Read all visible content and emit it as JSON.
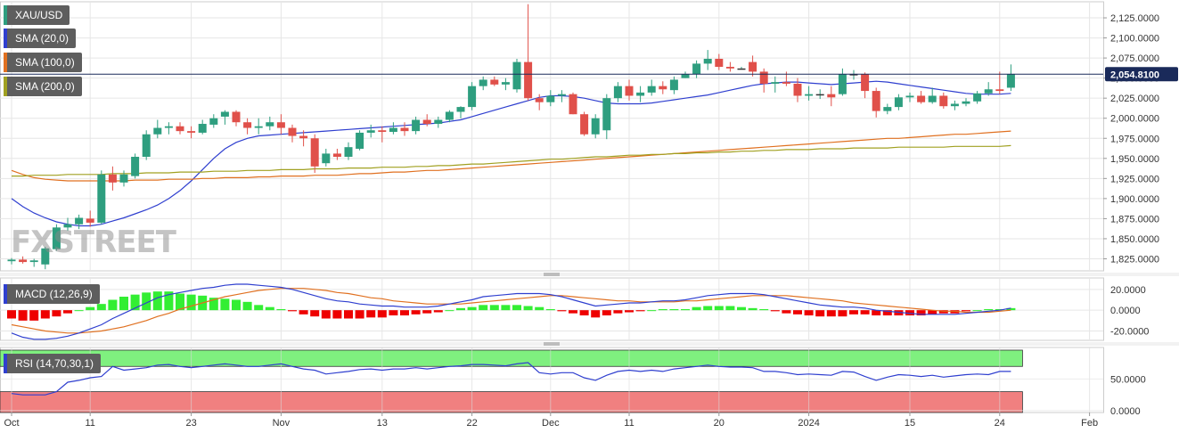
{
  "chart_data": [
    {
      "type": "candlestick",
      "title": "XAU/USD",
      "ylim": [
        1810,
        2145
      ],
      "yticks": [
        "2,125.0000",
        "2,100.0000",
        "2,075.0000",
        "2,050.0000",
        "2,025.0000",
        "2,000.0000",
        "1,975.0000",
        "1,950.0000",
        "1,925.0000",
        "1,900.0000",
        "1,875.0000",
        "1,850.0000",
        "1,825.0000"
      ],
      "last_price_label": "2,054.8100",
      "last_price": 2054.81,
      "candles": [
        [
          1822,
          1826,
          1818,
          1824
        ],
        [
          1824,
          1828,
          1819,
          1821
        ],
        [
          1821,
          1825,
          1815,
          1823
        ],
        [
          1818,
          1840,
          1812,
          1838
        ],
        [
          1837,
          1868,
          1835,
          1864
        ],
        [
          1864,
          1876,
          1860,
          1868
        ],
        [
          1868,
          1880,
          1862,
          1876
        ],
        [
          1875,
          1885,
          1865,
          1870
        ],
        [
          1870,
          1935,
          1868,
          1930
        ],
        [
          1930,
          1940,
          1910,
          1920
        ],
        [
          1920,
          1935,
          1915,
          1930
        ],
        [
          1928,
          1956,
          1925,
          1952
        ],
        [
          1952,
          1985,
          1948,
          1980
        ],
        [
          1980,
          1998,
          1975,
          1988
        ],
        [
          1988,
          1995,
          1980,
          1990
        ],
        [
          1990,
          1995,
          1980,
          1984
        ],
        [
          1984,
          1990,
          1975,
          1982
        ],
        [
          1982,
          1998,
          1980,
          1993
        ],
        [
          1992,
          2005,
          1988,
          2000
        ],
        [
          2002,
          2010,
          1992,
          2008
        ],
        [
          2008,
          2010,
          1990,
          1995
        ],
        [
          1995,
          2000,
          1980,
          1988
        ],
        [
          1988,
          2000,
          1980,
          1990
        ],
        [
          1990,
          2002,
          1985,
          1995
        ],
        [
          1995,
          2005,
          1980,
          1988
        ],
        [
          1988,
          1992,
          1970,
          1978
        ],
        [
          1978,
          1985,
          1965,
          1975
        ],
        [
          1975,
          1980,
          1932,
          1940
        ],
        [
          1944,
          1962,
          1940,
          1956
        ],
        [
          1956,
          1962,
          1948,
          1952
        ],
        [
          1952,
          1970,
          1948,
          1964
        ],
        [
          1962,
          1985,
          1960,
          1982
        ],
        [
          1982,
          1992,
          1976,
          1985
        ],
        [
          1985,
          1990,
          1970,
          1983
        ],
        [
          1983,
          1995,
          1980,
          1988
        ],
        [
          1988,
          1995,
          1978,
          1984
        ],
        [
          1984,
          2002,
          1980,
          1998
        ],
        [
          1998,
          2005,
          1990,
          1993
        ],
        [
          1993,
          2002,
          1988,
          1998
        ],
        [
          1998,
          2010,
          1995,
          2008
        ],
        [
          2008,
          2015,
          2000,
          2014
        ],
        [
          2014,
          2045,
          2010,
          2040
        ],
        [
          2040,
          2052,
          2035,
          2048
        ],
        [
          2048,
          2052,
          2040,
          2042
        ],
        [
          2042,
          2050,
          2035,
          2045
        ],
        [
          2036,
          2074,
          2032,
          2070
        ],
        [
          2070,
          2142,
          2022,
          2025
        ],
        [
          2025,
          2030,
          2010,
          2020
        ],
        [
          2020,
          2035,
          2015,
          2028
        ],
        [
          2028,
          2035,
          2020,
          2030
        ],
        [
          2030,
          2032,
          2005,
          2005
        ],
        [
          2005,
          2008,
          1978,
          1980
        ],
        [
          1980,
          2005,
          1975,
          2000
        ],
        [
          1985,
          2030,
          1974,
          2025
        ],
        [
          2025,
          2045,
          2020,
          2040
        ],
        [
          2040,
          2048,
          2022,
          2028
        ],
        [
          2028,
          2040,
          2020,
          2032
        ],
        [
          2032,
          2048,
          2028,
          2040
        ],
        [
          2040,
          2046,
          2030,
          2036
        ],
        [
          2035,
          2052,
          2030,
          2048
        ],
        [
          2050,
          2058,
          2050,
          2055
        ],
        [
          2055,
          2072,
          2050,
          2068
        ],
        [
          2068,
          2085,
          2060,
          2074
        ],
        [
          2074,
          2080,
          2060,
          2064
        ],
        [
          2064,
          2070,
          2058,
          2062
        ],
        [
          2062,
          2064,
          2062,
          2062
        ],
        [
          2070,
          2078,
          2052,
          2058
        ],
        [
          2058,
          2062,
          2032,
          2043
        ],
        [
          2043,
          2052,
          2032,
          2045
        ],
        [
          2045,
          2058,
          2040,
          2043
        ],
        [
          2043,
          2050,
          2020,
          2028
        ],
        [
          2028,
          2040,
          2022,
          2030
        ],
        [
          2030,
          2036,
          2024,
          2030
        ],
        [
          2030,
          2040,
          2015,
          2026
        ],
        [
          2030,
          2062,
          2028,
          2055
        ],
        [
          2055,
          2060,
          2048,
          2055
        ],
        [
          2055,
          2057,
          2025,
          2034
        ],
        [
          2034,
          2038,
          2001,
          2009
        ],
        [
          2009,
          2018,
          2005,
          2014
        ],
        [
          2014,
          2030,
          2010,
          2026
        ],
        [
          2026,
          2032,
          2020,
          2028
        ],
        [
          2028,
          2034,
          2018,
          2020
        ],
        [
          2020,
          2038,
          2018,
          2028
        ],
        [
          2028,
          2032,
          2012,
          2015
        ],
        [
          2015,
          2022,
          2010,
          2018
        ],
        [
          2018,
          2025,
          2015,
          2021
        ],
        [
          2021,
          2034,
          2018,
          2031
        ],
        [
          2031,
          2045,
          2028,
          2036
        ],
        [
          2036,
          2058,
          2030,
          2034
        ],
        [
          2038,
          2067,
          2034,
          2054.81
        ]
      ],
      "sma": [
        {
          "name": "SMA (20,0)",
          "color": "#2f3fcf",
          "values": [
            1900,
            1890,
            1882,
            1876,
            1871,
            1868,
            1866,
            1866,
            1868,
            1872,
            1876,
            1881,
            1886,
            1892,
            1900,
            1910,
            1922,
            1936,
            1950,
            1962,
            1970,
            1975,
            1978,
            1979,
            1980,
            1981,
            1982,
            1983,
            1984,
            1985,
            1986,
            1987,
            1988,
            1989,
            1990,
            1991,
            1992,
            1993,
            1994,
            1996,
            1998,
            2002,
            2006,
            2010,
            2014,
            2018,
            2022,
            2026,
            2028,
            2028,
            2027,
            2025,
            2022,
            2019,
            2018,
            2018,
            2018,
            2019,
            2021,
            2023,
            2025,
            2027,
            2029,
            2032,
            2035,
            2038,
            2041,
            2043,
            2044,
            2045,
            2045,
            2044,
            2043,
            2042,
            2043,
            2044,
            2045,
            2046,
            2045,
            2043,
            2041,
            2039,
            2037,
            2035,
            2033,
            2031,
            2030,
            2030,
            2030,
            2031
          ]
        },
        {
          "name": "SMA (100,0)",
          "color": "#e07020",
          "values": [
            1935,
            1930,
            1926,
            1924,
            1923,
            1922,
            1922,
            1922,
            1922,
            1922,
            1922,
            1923,
            1923,
            1923,
            1924,
            1924,
            1924,
            1925,
            1925,
            1926,
            1926,
            1926,
            1927,
            1927,
            1928,
            1928,
            1928,
            1929,
            1929,
            1929,
            1930,
            1931,
            1931,
            1932,
            1933,
            1933,
            1934,
            1935,
            1935,
            1936,
            1937,
            1938,
            1939,
            1940,
            1941,
            1942,
            1943,
            1944,
            1945,
            1946,
            1947,
            1948,
            1949,
            1950,
            1951,
            1952,
            1953,
            1954,
            1955,
            1956,
            1957,
            1958,
            1959,
            1960,
            1961,
            1962,
            1963,
            1964,
            1965,
            1966,
            1967,
            1968,
            1969,
            1970,
            1971,
            1972,
            1973,
            1974,
            1975,
            1975,
            1976,
            1977,
            1978,
            1979,
            1980,
            1980,
            1981,
            1982,
            1983,
            1984
          ]
        },
        {
          "name": "SMA (200,0)",
          "color": "#a0a020",
          "values": [
            1928,
            1928,
            1929,
            1929,
            1929,
            1930,
            1930,
            1930,
            1930,
            1931,
            1931,
            1931,
            1932,
            1932,
            1932,
            1933,
            1933,
            1933,
            1934,
            1934,
            1934,
            1935,
            1935,
            1935,
            1936,
            1936,
            1936,
            1937,
            1937,
            1937,
            1938,
            1938,
            1938,
            1939,
            1939,
            1939,
            1940,
            1940,
            1941,
            1941,
            1942,
            1943,
            1943,
            1944,
            1945,
            1946,
            1947,
            1948,
            1949,
            1949,
            1950,
            1951,
            1952,
            1952,
            1953,
            1954,
            1954,
            1955,
            1955,
            1956,
            1956,
            1957,
            1957,
            1958,
            1958,
            1959,
            1959,
            1960,
            1960,
            1961,
            1961,
            1961,
            1962,
            1962,
            1962,
            1963,
            1963,
            1963,
            1963,
            1964,
            1964,
            1964,
            1964,
            1964,
            1965,
            1965,
            1965,
            1965,
            1965,
            1966
          ]
        }
      ]
    },
    {
      "type": "macd",
      "title": "MACD (12,26,9)",
      "ylim": [
        -29,
        31
      ],
      "yticks": [
        "20.0000",
        "0.0000",
        "-20.0000"
      ],
      "ytick_values": [
        20,
        0,
        -20
      ],
      "macd": [
        -22,
        -26,
        -28,
        -28,
        -27,
        -25,
        -22,
        -18,
        -14,
        -8,
        -3,
        2,
        7,
        12,
        15,
        17,
        19,
        21,
        22,
        24,
        25,
        25,
        24,
        23,
        22,
        20,
        17,
        14,
        11,
        9,
        8,
        6,
        5,
        4,
        4,
        3,
        3,
        3,
        4,
        6,
        8,
        10,
        13,
        14,
        15,
        16,
        16,
        16,
        15,
        13,
        10,
        7,
        4,
        5,
        6,
        7,
        7,
        8,
        9,
        9,
        10,
        12,
        14,
        15,
        16,
        16,
        16,
        15,
        13,
        11,
        9,
        7,
        5,
        4,
        3,
        3,
        2,
        0,
        -1,
        -2,
        -3,
        -4,
        -4,
        -4,
        -4,
        -3,
        -2,
        -1,
        0,
        2
      ],
      "signal": [
        -14,
        -16,
        -18,
        -20,
        -21,
        -22,
        -22,
        -21,
        -20,
        -18,
        -16,
        -13,
        -10,
        -6,
        -3,
        1,
        4,
        7,
        10,
        13,
        15,
        17,
        19,
        20,
        21,
        21,
        21,
        20,
        19,
        17,
        16,
        14,
        12,
        11,
        9,
        8,
        7,
        6,
        6,
        6,
        6,
        7,
        8,
        9,
        10,
        11,
        12,
        13,
        14,
        14,
        13,
        12,
        11,
        10,
        9,
        9,
        8,
        8,
        8,
        8,
        9,
        9,
        10,
        11,
        12,
        13,
        14,
        14,
        14,
        14,
        13,
        12,
        11,
        10,
        9,
        7,
        6,
        5,
        4,
        3,
        2,
        1,
        0,
        -1,
        -1,
        -2,
        -2,
        -2,
        -1,
        0
      ],
      "histogram": [
        -8,
        -10,
        -10,
        -8,
        -6,
        -3,
        0,
        3,
        6,
        10,
        13,
        15,
        17,
        18,
        18,
        16,
        15,
        14,
        12,
        11,
        10,
        8,
        5,
        3,
        1,
        -1,
        -4,
        -6,
        -8,
        -8,
        -8,
        -8,
        -7,
        -7,
        -5,
        -5,
        -4,
        -3,
        -2,
        0,
        2,
        3,
        5,
        5,
        5,
        5,
        4,
        3,
        1,
        -1,
        -3,
        -5,
        -7,
        -5,
        -3,
        -2,
        -1,
        0,
        1,
        1,
        1,
        3,
        4,
        4,
        4,
        3,
        2,
        1,
        -1,
        -3,
        -4,
        -5,
        -6,
        -6,
        -6,
        -4,
        -4,
        -5,
        -5,
        -5,
        -5,
        -5,
        -4,
        -3,
        -3,
        -1,
        0,
        1,
        1,
        2
      ],
      "macd_color": "#2f3fcf",
      "signal_color": "#e07020",
      "positive_color": "#33ee33",
      "negative_color": "#ee0000"
    },
    {
      "type": "rsi",
      "title": "RSI (14,70,30,1)",
      "ylim": [
        -3,
        100
      ],
      "yticks": [
        "50.0000",
        "0.0000"
      ],
      "ytick_values": [
        50,
        0
      ],
      "upper_band": 70,
      "lower_band": 30,
      "values": [
        27,
        25,
        25,
        25,
        30,
        45,
        48,
        52,
        54,
        70,
        64,
        66,
        68,
        72,
        73,
        70,
        68,
        70,
        72,
        74,
        72,
        70,
        70,
        72,
        74,
        70,
        66,
        64,
        58,
        60,
        62,
        65,
        66,
        64,
        66,
        66,
        68,
        66,
        68,
        70,
        71,
        73,
        73,
        72,
        71,
        74,
        76,
        60,
        58,
        60,
        60,
        52,
        48,
        56,
        62,
        64,
        62,
        64,
        62,
        66,
        68,
        70,
        72,
        70,
        69,
        69,
        68,
        62,
        62,
        60,
        57,
        58,
        57,
        56,
        62,
        61,
        54,
        48,
        53,
        57,
        56,
        54,
        56,
        53,
        55,
        57,
        58,
        57,
        62,
        62
      ],
      "line_color": "#2f3fcf",
      "upper_zone_color": "#7ff07f",
      "lower_zone_color": "#f08080"
    }
  ],
  "x_axis": {
    "labels": [
      {
        "index": 0,
        "label": "Oct"
      },
      {
        "index": 7,
        "label": "11"
      },
      {
        "index": 16,
        "label": "23"
      },
      {
        "index": 24,
        "label": "Nov"
      },
      {
        "index": 33,
        "label": "13"
      },
      {
        "index": 41,
        "label": "22"
      },
      {
        "index": 48,
        "label": "Dec"
      },
      {
        "index": 55,
        "label": "11"
      },
      {
        "index": 63,
        "label": "20"
      },
      {
        "index": 71,
        "label": "2024"
      },
      {
        "index": 80,
        "label": "15"
      },
      {
        "index": 88,
        "label": "24"
      },
      {
        "index": 96,
        "label": "Feb"
      }
    ]
  },
  "watermark": "FXSTREET",
  "colors": {
    "bull": "#2e9e7f",
    "bear": "#e0504a",
    "price_line": "#1a2a5a",
    "grid": "#e6e6e6"
  }
}
